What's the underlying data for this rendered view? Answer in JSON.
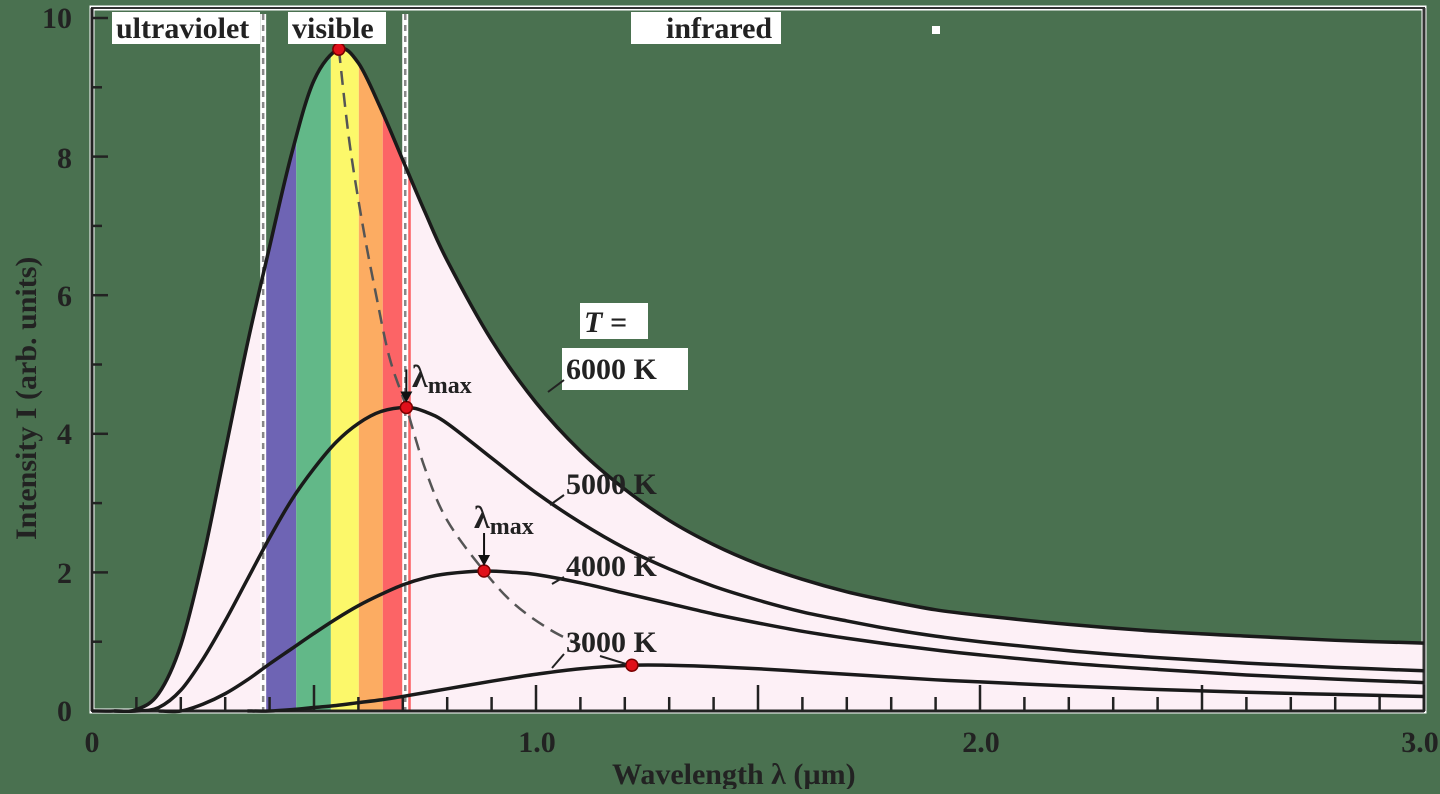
{
  "chart_data": {
    "type": "line",
    "title": "",
    "xlabel": "Wavelength λ (µm)",
    "ylabel": "Intensity I (arb. units)",
    "xlim": [
      0,
      3.0
    ],
    "ylim": [
      0,
      10
    ],
    "grid": false,
    "legend_position": "inline labels",
    "x_ticks": [
      {
        "value": 0,
        "label": "0"
      },
      {
        "value": 1.0,
        "label": "1.0"
      },
      {
        "value": 2.0,
        "label": "2.0"
      },
      {
        "value": 3.0,
        "label": "3.0"
      }
    ],
    "x_minor_step": 0.1,
    "y_ticks": [
      {
        "value": 0,
        "label": "0"
      },
      {
        "value": 2,
        "label": "2"
      },
      {
        "value": 4,
        "label": "4"
      },
      {
        "value": 6,
        "label": "6"
      },
      {
        "value": 8,
        "label": "8"
      },
      {
        "value": 10,
        "label": "10"
      }
    ],
    "y_minor_step": 1,
    "regions": [
      {
        "name": "ultraviolet",
        "label": "ultraviolet",
        "x_center": 0.17
      },
      {
        "name": "visible",
        "label": "visible",
        "x_center": 0.55,
        "x_range": [
          0.39,
          0.71
        ]
      },
      {
        "name": "infrared",
        "label": "infrared",
        "x_center": 1.45
      }
    ],
    "region_boundaries": [
      0.39,
      0.71
    ],
    "spectrum_bands": [
      {
        "color": "#6e64b4",
        "x_range": [
          0.392,
          0.46
        ]
      },
      {
        "color": "#62b888",
        "x_range": [
          0.46,
          0.538
        ]
      },
      {
        "color": "#fcf86a",
        "x_range": [
          0.538,
          0.601
        ]
      },
      {
        "color": "#fcac62",
        "x_range": [
          0.601,
          0.655
        ]
      },
      {
        "color": "#fc6466",
        "x_range": [
          0.655,
          0.718
        ]
      }
    ],
    "fill_color": "#fdf0f6",
    "series": [
      {
        "name": "6000 K",
        "label": "6000 K",
        "peak": {
          "x": 0.556,
          "y": 9.55
        },
        "points": [
          [
            0.05,
            0.0
          ],
          [
            0.1,
            0.02
          ],
          [
            0.15,
            0.25
          ],
          [
            0.2,
            0.95
          ],
          [
            0.25,
            2.2
          ],
          [
            0.3,
            3.75
          ],
          [
            0.35,
            5.3
          ],
          [
            0.4,
            6.7
          ],
          [
            0.45,
            8.05
          ],
          [
            0.5,
            9.1
          ],
          [
            0.556,
            9.55
          ],
          [
            0.6,
            9.35
          ],
          [
            0.65,
            8.7
          ],
          [
            0.7,
            7.95
          ],
          [
            0.75,
            7.2
          ],
          [
            0.8,
            6.5
          ],
          [
            0.9,
            5.35
          ],
          [
            1.0,
            4.45
          ],
          [
            1.1,
            3.75
          ],
          [
            1.2,
            3.2
          ],
          [
            1.3,
            2.75
          ],
          [
            1.4,
            2.4
          ],
          [
            1.5,
            2.12
          ],
          [
            1.6,
            1.9
          ],
          [
            1.7,
            1.72
          ],
          [
            1.8,
            1.58
          ],
          [
            1.9,
            1.46
          ],
          [
            2.0,
            1.38
          ],
          [
            2.2,
            1.25
          ],
          [
            2.4,
            1.15
          ],
          [
            2.6,
            1.08
          ],
          [
            2.8,
            1.02
          ],
          [
            3.0,
            0.98
          ]
        ]
      },
      {
        "name": "5000 K",
        "label": "5000 K",
        "peak": {
          "x": 0.708,
          "y": 4.38
        },
        "points": [
          [
            0.1,
            0.0
          ],
          [
            0.15,
            0.05
          ],
          [
            0.2,
            0.3
          ],
          [
            0.25,
            0.75
          ],
          [
            0.3,
            1.3
          ],
          [
            0.35,
            1.9
          ],
          [
            0.4,
            2.5
          ],
          [
            0.45,
            3.05
          ],
          [
            0.5,
            3.5
          ],
          [
            0.55,
            3.88
          ],
          [
            0.6,
            4.15
          ],
          [
            0.65,
            4.32
          ],
          [
            0.708,
            4.38
          ],
          [
            0.75,
            4.32
          ],
          [
            0.8,
            4.15
          ],
          [
            0.9,
            3.65
          ],
          [
            1.0,
            3.15
          ],
          [
            1.1,
            2.72
          ],
          [
            1.2,
            2.35
          ],
          [
            1.3,
            2.05
          ],
          [
            1.4,
            1.8
          ],
          [
            1.5,
            1.6
          ],
          [
            1.6,
            1.43
          ],
          [
            1.7,
            1.3
          ],
          [
            1.8,
            1.18
          ],
          [
            1.9,
            1.08
          ],
          [
            2.0,
            1.0
          ],
          [
            2.2,
            0.87
          ],
          [
            2.4,
            0.77
          ],
          [
            2.6,
            0.69
          ],
          [
            2.8,
            0.63
          ],
          [
            3.0,
            0.58
          ]
        ]
      },
      {
        "name": "4000 K",
        "label": "4000 K",
        "peak": {
          "x": 0.883,
          "y": 2.02
        },
        "points": [
          [
            0.2,
            0.0
          ],
          [
            0.25,
            0.1
          ],
          [
            0.3,
            0.25
          ],
          [
            0.35,
            0.45
          ],
          [
            0.4,
            0.68
          ],
          [
            0.45,
            0.9
          ],
          [
            0.5,
            1.12
          ],
          [
            0.55,
            1.33
          ],
          [
            0.6,
            1.52
          ],
          [
            0.65,
            1.68
          ],
          [
            0.7,
            1.82
          ],
          [
            0.75,
            1.92
          ],
          [
            0.8,
            1.98
          ],
          [
            0.883,
            2.02
          ],
          [
            0.95,
            2.0
          ],
          [
            1.0,
            1.97
          ],
          [
            1.1,
            1.85
          ],
          [
            1.2,
            1.7
          ],
          [
            1.3,
            1.55
          ],
          [
            1.4,
            1.4
          ],
          [
            1.5,
            1.27
          ],
          [
            1.6,
            1.15
          ],
          [
            1.7,
            1.05
          ],
          [
            1.8,
            0.96
          ],
          [
            1.9,
            0.88
          ],
          [
            2.0,
            0.81
          ],
          [
            2.2,
            0.69
          ],
          [
            2.4,
            0.6
          ],
          [
            2.6,
            0.52
          ],
          [
            2.8,
            0.46
          ],
          [
            3.0,
            0.41
          ]
        ]
      },
      {
        "name": "3000 K",
        "label": "3000 K",
        "peak": {
          "x": 1.216,
          "y": 0.66
        },
        "points": [
          [
            0.4,
            0.0
          ],
          [
            0.45,
            0.02
          ],
          [
            0.5,
            0.05
          ],
          [
            0.55,
            0.08
          ],
          [
            0.6,
            0.12
          ],
          [
            0.65,
            0.16
          ],
          [
            0.7,
            0.21
          ],
          [
            0.8,
            0.32
          ],
          [
            0.9,
            0.43
          ],
          [
            1.0,
            0.53
          ],
          [
            1.1,
            0.61
          ],
          [
            1.216,
            0.66
          ],
          [
            1.3,
            0.66
          ],
          [
            1.4,
            0.64
          ],
          [
            1.5,
            0.61
          ],
          [
            1.6,
            0.57
          ],
          [
            1.7,
            0.53
          ],
          [
            1.8,
            0.49
          ],
          [
            1.9,
            0.45
          ],
          [
            2.0,
            0.42
          ],
          [
            2.2,
            0.36
          ],
          [
            2.4,
            0.31
          ],
          [
            2.6,
            0.27
          ],
          [
            2.8,
            0.24
          ],
          [
            3.0,
            0.21
          ]
        ]
      }
    ],
    "wien_locus": {
      "style": "dashed",
      "points": [
        [
          0.556,
          9.55
        ],
        [
          0.58,
          8.2
        ],
        [
          0.61,
          7.0
        ],
        [
          0.64,
          6.0
        ],
        [
          0.67,
          5.1
        ],
        [
          0.708,
          4.38
        ],
        [
          0.75,
          3.5
        ],
        [
          0.8,
          2.75
        ],
        [
          0.883,
          2.02
        ],
        [
          0.95,
          1.55
        ],
        [
          1.03,
          1.18
        ],
        [
          1.1,
          0.95
        ]
      ]
    },
    "annotations": [
      {
        "text": "T =",
        "x": 1.12,
        "y": 5.9
      },
      {
        "text": "λmax",
        "x": 0.72,
        "y": 4.7,
        "arrow_to": [
          0.708,
          4.38
        ]
      },
      {
        "text": "λmax",
        "x": 0.88,
        "y": 2.6,
        "arrow_to": [
          0.883,
          2.02
        ]
      }
    ],
    "marker_color": "#e0101a"
  },
  "labels": {
    "ultraviolet": "ultraviolet",
    "visible": "visible",
    "infrared": "infrared",
    "t_equals": "T =",
    "lambda": "λ",
    "max_sub": "max",
    "series_6000": "6000 K",
    "series_5000": "5000 K",
    "series_4000": "4000 K",
    "series_3000": "3000 K",
    "xlabel": "Wavelength  λ  (µm)",
    "ylabel": "Intensity  I  (arb. units)",
    "x_tick_0": "0",
    "x_tick_1": "1.0",
    "x_tick_2": "2.0",
    "x_tick_3": "3.0",
    "y_tick_0": "0",
    "y_tick_2": "2",
    "y_tick_4": "4",
    "y_tick_6": "6",
    "y_tick_8": "8",
    "y_tick_10": "10"
  }
}
